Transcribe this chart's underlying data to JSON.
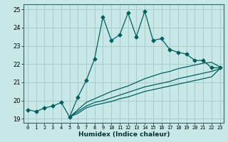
{
  "xlabel": "Humidex (Indice chaleur)",
  "bg_color": "#c8e8e8",
  "grid_color": "#aacccc",
  "line_color": "#006060",
  "xlim": [
    -0.5,
    23.5
  ],
  "ylim": [
    18.8,
    25.3
  ],
  "yticks": [
    19,
    20,
    21,
    22,
    23,
    24,
    25
  ],
  "xtick_labels": [
    "0",
    "1",
    "2",
    "3",
    "4",
    "5",
    "6",
    "7",
    "8",
    "9",
    "10",
    "11",
    "12",
    "13",
    "14",
    "15",
    "16",
    "17",
    "18",
    "19",
    "20",
    "21",
    "22",
    "23"
  ],
  "series1_x": [
    0,
    1,
    2,
    3,
    4,
    5,
    6,
    7,
    8,
    9,
    10,
    11,
    12,
    13,
    14,
    15,
    16,
    17,
    18,
    19,
    20,
    21,
    22,
    23
  ],
  "series1_y": [
    19.5,
    19.4,
    19.6,
    19.7,
    19.9,
    19.1,
    20.2,
    21.1,
    22.3,
    24.6,
    23.3,
    23.6,
    24.8,
    23.5,
    24.9,
    23.3,
    23.4,
    22.8,
    22.65,
    22.55,
    22.2,
    22.2,
    21.8,
    21.8
  ],
  "series2_x": [
    5,
    6,
    7,
    8,
    9,
    10,
    11,
    12,
    13,
    14,
    15,
    16,
    17,
    18,
    19,
    20,
    21,
    22,
    23
  ],
  "series2_y": [
    19.1,
    19.5,
    19.9,
    20.1,
    20.3,
    20.5,
    20.65,
    20.8,
    21.0,
    21.2,
    21.35,
    21.5,
    21.6,
    21.75,
    21.85,
    21.95,
    22.05,
    22.1,
    21.85
  ],
  "series3_x": [
    5,
    6,
    7,
    8,
    9,
    10,
    11,
    12,
    13,
    14,
    15,
    16,
    17,
    18,
    19,
    20,
    21,
    22,
    23
  ],
  "series3_y": [
    19.1,
    19.4,
    19.7,
    19.9,
    20.0,
    20.15,
    20.3,
    20.45,
    20.6,
    20.75,
    20.85,
    20.95,
    21.05,
    21.2,
    21.3,
    21.4,
    21.5,
    21.6,
    21.75
  ],
  "series4_x": [
    5,
    6,
    7,
    8,
    9,
    10,
    11,
    12,
    13,
    14,
    15,
    16,
    17,
    18,
    19,
    20,
    21,
    22,
    23
  ],
  "series4_y": [
    19.1,
    19.3,
    19.6,
    19.75,
    19.85,
    19.95,
    20.1,
    20.2,
    20.35,
    20.5,
    20.6,
    20.7,
    20.8,
    20.9,
    21.0,
    21.1,
    21.2,
    21.3,
    21.75
  ]
}
